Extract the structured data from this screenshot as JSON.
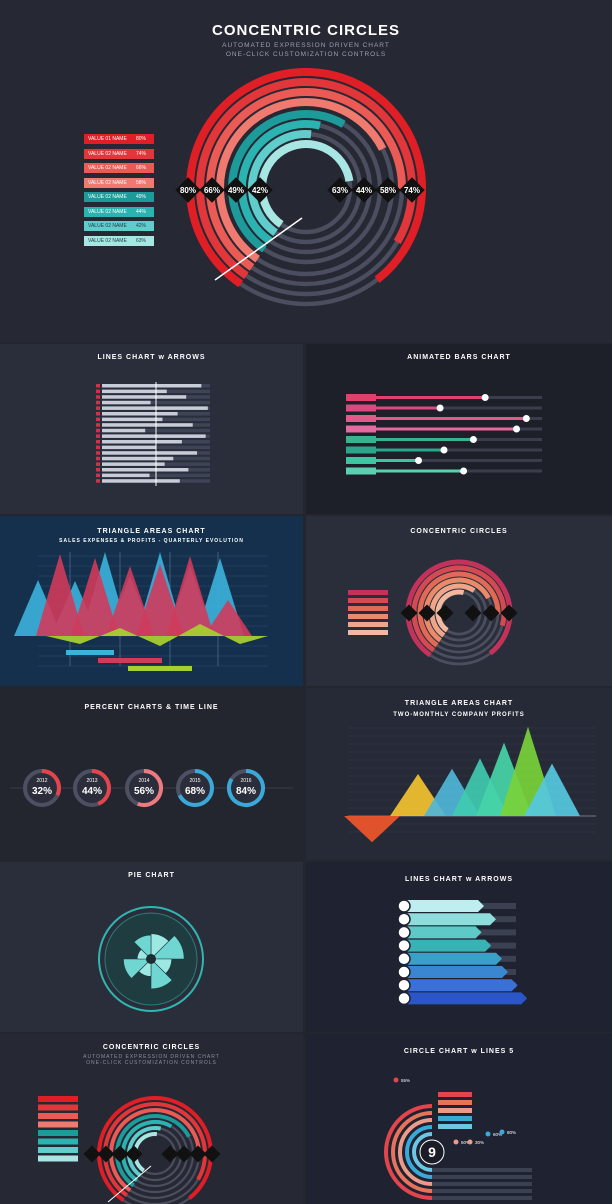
{
  "hero": {
    "title": "CONCENTRIC  CIRCLES",
    "subtitle1": "AUTOMATED EXPRESSION DRIVEN CHART",
    "subtitle2": "ONE-CLICK CUSTOMIZATION CONTROLS"
  },
  "panels": {
    "lines_arrows_1": {
      "title": "LINES CHART w ARROWS"
    },
    "animated_bars": {
      "title": "ANIMATED  BARS  CHART"
    },
    "triangle_1": {
      "title": "TRIANGLE AREAS CHART",
      "subtitle": "SALES EXPENSES & PROFITS - QUARTERLY EVOLUTION"
    },
    "concentric_small": {
      "title": "CONCENTRIC  CIRCLES"
    },
    "percent_timeline": {
      "title": "PERCENT CHARTS  & TIME LINE"
    },
    "triangle_2": {
      "title": "TRIANGLE AREAS CHART",
      "subtitle": "TWO-MONTHLY COMPANY PROFITS"
    },
    "pie": {
      "title": "PIE CHART"
    },
    "lines_arrows_2": {
      "title": "LINES CHART w ARROWS"
    },
    "concentric_bottom": {
      "title": "CONCENTRIC CIRCLES",
      "subtitle1": "AUTOMATED EXPRESSION DRIVEN CHART",
      "subtitle2": "ONE-CLICK CUSTOMIZATION CONTROLS"
    },
    "circle_lines": {
      "title": "CIRCLE CHART w LINES 5"
    }
  },
  "chart_data": [
    {
      "type": "concentric-rings",
      "title": "CONCENTRIC  CIRCLES",
      "series": [
        {
          "name": "VALUE 01 NAME",
          "value": 80,
          "label": "80%",
          "color": "#e01e25"
        },
        {
          "name": "VALUE 02 NAME",
          "value": 74,
          "label": "74%",
          "color": "#e2373a"
        },
        {
          "name": "VALUE 02 NAME",
          "value": 66,
          "label": "66%",
          "color": "#ec5a55"
        },
        {
          "name": "VALUE 02 NAME",
          "value": 58,
          "label": "58%",
          "color": "#f07a70"
        },
        {
          "name": "VALUE 02 NAME",
          "value": 49,
          "label": "49%",
          "color": "#1d9a9a"
        },
        {
          "name": "VALUE 02 NAME",
          "value": 44,
          "label": "44%",
          "color": "#2bb3b1"
        },
        {
          "name": "VALUE 02 NAME",
          "value": 42,
          "label": "42%",
          "color": "#5fcdcb"
        },
        {
          "name": "VALUE 02 NAME",
          "value": 63,
          "label": "63%",
          "color": "#a8e6e3"
        }
      ]
    },
    {
      "type": "bar",
      "title": "ANIMATED  BARS  CHART",
      "orientation": "horizontal",
      "values": [
        71,
        48,
        92,
        87,
        65,
        50,
        37,
        60
      ],
      "colors": [
        "#e0406a",
        "#d94a7e",
        "#e05a8a",
        "#e46aa0",
        "#38b38f",
        "#2ca58a",
        "#40c5a0",
        "#5ad0b0"
      ]
    },
    {
      "type": "percent",
      "title": "PERCENT CHARTS  & TIME LINE",
      "categories": [
        "2012",
        "2013",
        "2014",
        "2015",
        "2016"
      ],
      "values": [
        32,
        44,
        56,
        68,
        84
      ],
      "labels": [
        "32%",
        "44%",
        "56%",
        "68%",
        "84%"
      ],
      "colors": [
        "#e2454b",
        "#e2454b",
        "#ec7a80",
        "#3aa8d8",
        "#3aa8d8"
      ]
    },
    {
      "type": "area",
      "title": "TRIANGLE AREAS CHART",
      "subtitle": "TWO-MONTHLY COMPANY PROFITS",
      "values": [
        -25,
        40,
        45,
        55,
        70,
        85,
        50
      ],
      "colors": [
        "#f0562a",
        "#f2c22f",
        "#4fb6d8",
        "#3fcab0",
        "#46d4a8",
        "#78d23a",
        "#55c8e0"
      ]
    },
    {
      "type": "pie",
      "title": "PIE CHART",
      "values": [
        55,
        72,
        45,
        65,
        38,
        60,
        30,
        52
      ]
    },
    {
      "type": "bar",
      "title": "LINES CHART w ARROWS",
      "orientation": "horizontal",
      "values": [
        60,
        70,
        58,
        66,
        75,
        80,
        88,
        96
      ],
      "colors": [
        "#bfeef0",
        "#8fdcdc",
        "#5ecac8",
        "#39b2b6",
        "#3aa0c8",
        "#3a86d0",
        "#3a70d8",
        "#2a56c8"
      ]
    },
    {
      "type": "concentric-rings",
      "title": "CIRCLE CHART w LINES 5",
      "center_label": "9",
      "labels": [
        "55%",
        "50%",
        "30%",
        "60%",
        "80%"
      ]
    }
  ]
}
